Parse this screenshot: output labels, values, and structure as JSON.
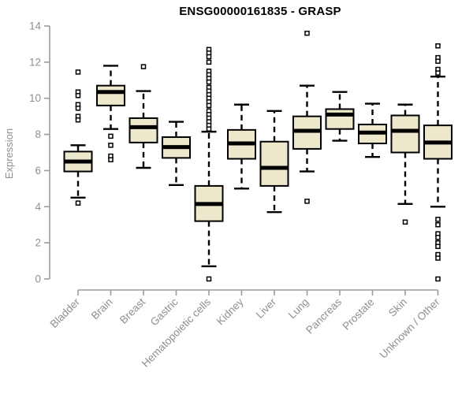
{
  "chart_data": {
    "type": "boxplot",
    "title": "ENSG00000161835 - GRASP",
    "xlabel": "",
    "ylabel": "Expression",
    "ylim": [
      0,
      14
    ],
    "yticks": [
      0,
      2,
      4,
      6,
      8,
      10,
      12,
      14
    ],
    "grid": false,
    "legend": null,
    "categories": [
      "Bladder",
      "Brain",
      "Breast",
      "Gastric",
      "Hematopoietic cells",
      "Kidney",
      "Liver",
      "Lung",
      "Pancreas",
      "Prostate",
      "Skin",
      "Unknown / Other"
    ],
    "series": [
      {
        "category": "Bladder",
        "whisker_low": 4.5,
        "q1": 5.95,
        "median": 6.5,
        "q3": 7.05,
        "whisker_high": 7.4,
        "outliers": [
          11.45,
          10.35,
          10.15,
          9.65,
          9.45,
          9.0,
          8.8,
          4.2
        ]
      },
      {
        "category": "Brain",
        "whisker_low": 8.3,
        "q1": 9.6,
        "median": 10.35,
        "q3": 10.7,
        "whisker_high": 11.8,
        "outliers": [
          7.9,
          7.4,
          6.8,
          6.6
        ]
      },
      {
        "category": "Breast",
        "whisker_low": 6.15,
        "q1": 7.55,
        "median": 8.4,
        "q3": 8.9,
        "whisker_high": 10.4,
        "outliers": [
          11.75
        ]
      },
      {
        "category": "Gastric",
        "whisker_low": 5.2,
        "q1": 6.7,
        "median": 7.3,
        "q3": 7.85,
        "whisker_high": 8.7,
        "outliers": []
      },
      {
        "category": "Hematopoietic cells",
        "whisker_low": 0.7,
        "q1": 3.2,
        "median": 4.15,
        "q3": 5.15,
        "whisker_high": 8.15,
        "outliers": [
          12.7,
          12.5,
          12.3,
          12.0,
          11.5,
          11.3,
          11.1,
          10.9,
          10.6,
          10.4,
          10.2,
          10.0,
          9.8,
          9.6,
          9.3,
          9.1,
          8.9,
          8.7,
          8.5,
          8.3,
          0.0
        ]
      },
      {
        "category": "Kidney",
        "whisker_low": 5.0,
        "q1": 6.65,
        "median": 7.5,
        "q3": 8.25,
        "whisker_high": 9.65,
        "outliers": []
      },
      {
        "category": "Liver",
        "whisker_low": 3.7,
        "q1": 5.15,
        "median": 6.15,
        "q3": 7.6,
        "whisker_high": 9.3,
        "outliers": []
      },
      {
        "category": "Lung",
        "whisker_low": 5.95,
        "q1": 7.2,
        "median": 8.2,
        "q3": 9.0,
        "whisker_high": 10.7,
        "outliers": [
          13.6,
          4.3
        ]
      },
      {
        "category": "Pancreas",
        "whisker_low": 7.65,
        "q1": 8.3,
        "median": 9.1,
        "q3": 9.4,
        "whisker_high": 10.35,
        "outliers": []
      },
      {
        "category": "Prostate",
        "whisker_low": 6.75,
        "q1": 7.5,
        "median": 8.1,
        "q3": 8.55,
        "whisker_high": 9.7,
        "outliers": []
      },
      {
        "category": "Skin",
        "whisker_low": 4.15,
        "q1": 7.0,
        "median": 8.2,
        "q3": 9.05,
        "whisker_high": 9.65,
        "outliers": [
          3.15
        ]
      },
      {
        "category": "Unknown / Other",
        "whisker_low": 4.0,
        "q1": 6.65,
        "median": 7.55,
        "q3": 8.5,
        "whisker_high": 11.2,
        "outliers": [
          12.9,
          12.25,
          12.05,
          11.6,
          11.4,
          3.3,
          3.0,
          2.5,
          2.3,
          2.0,
          1.8,
          1.35,
          1.15,
          0.0
        ]
      }
    ],
    "colors": {
      "box_fill": "#EDE7CC",
      "box_stroke": "#000000",
      "median": "#000000",
      "whisker": "#000000",
      "outlier_fill": "#ffffff",
      "axis": "#9b9b9b",
      "tick_label": "#8f8f8f",
      "title": "#000000"
    }
  }
}
